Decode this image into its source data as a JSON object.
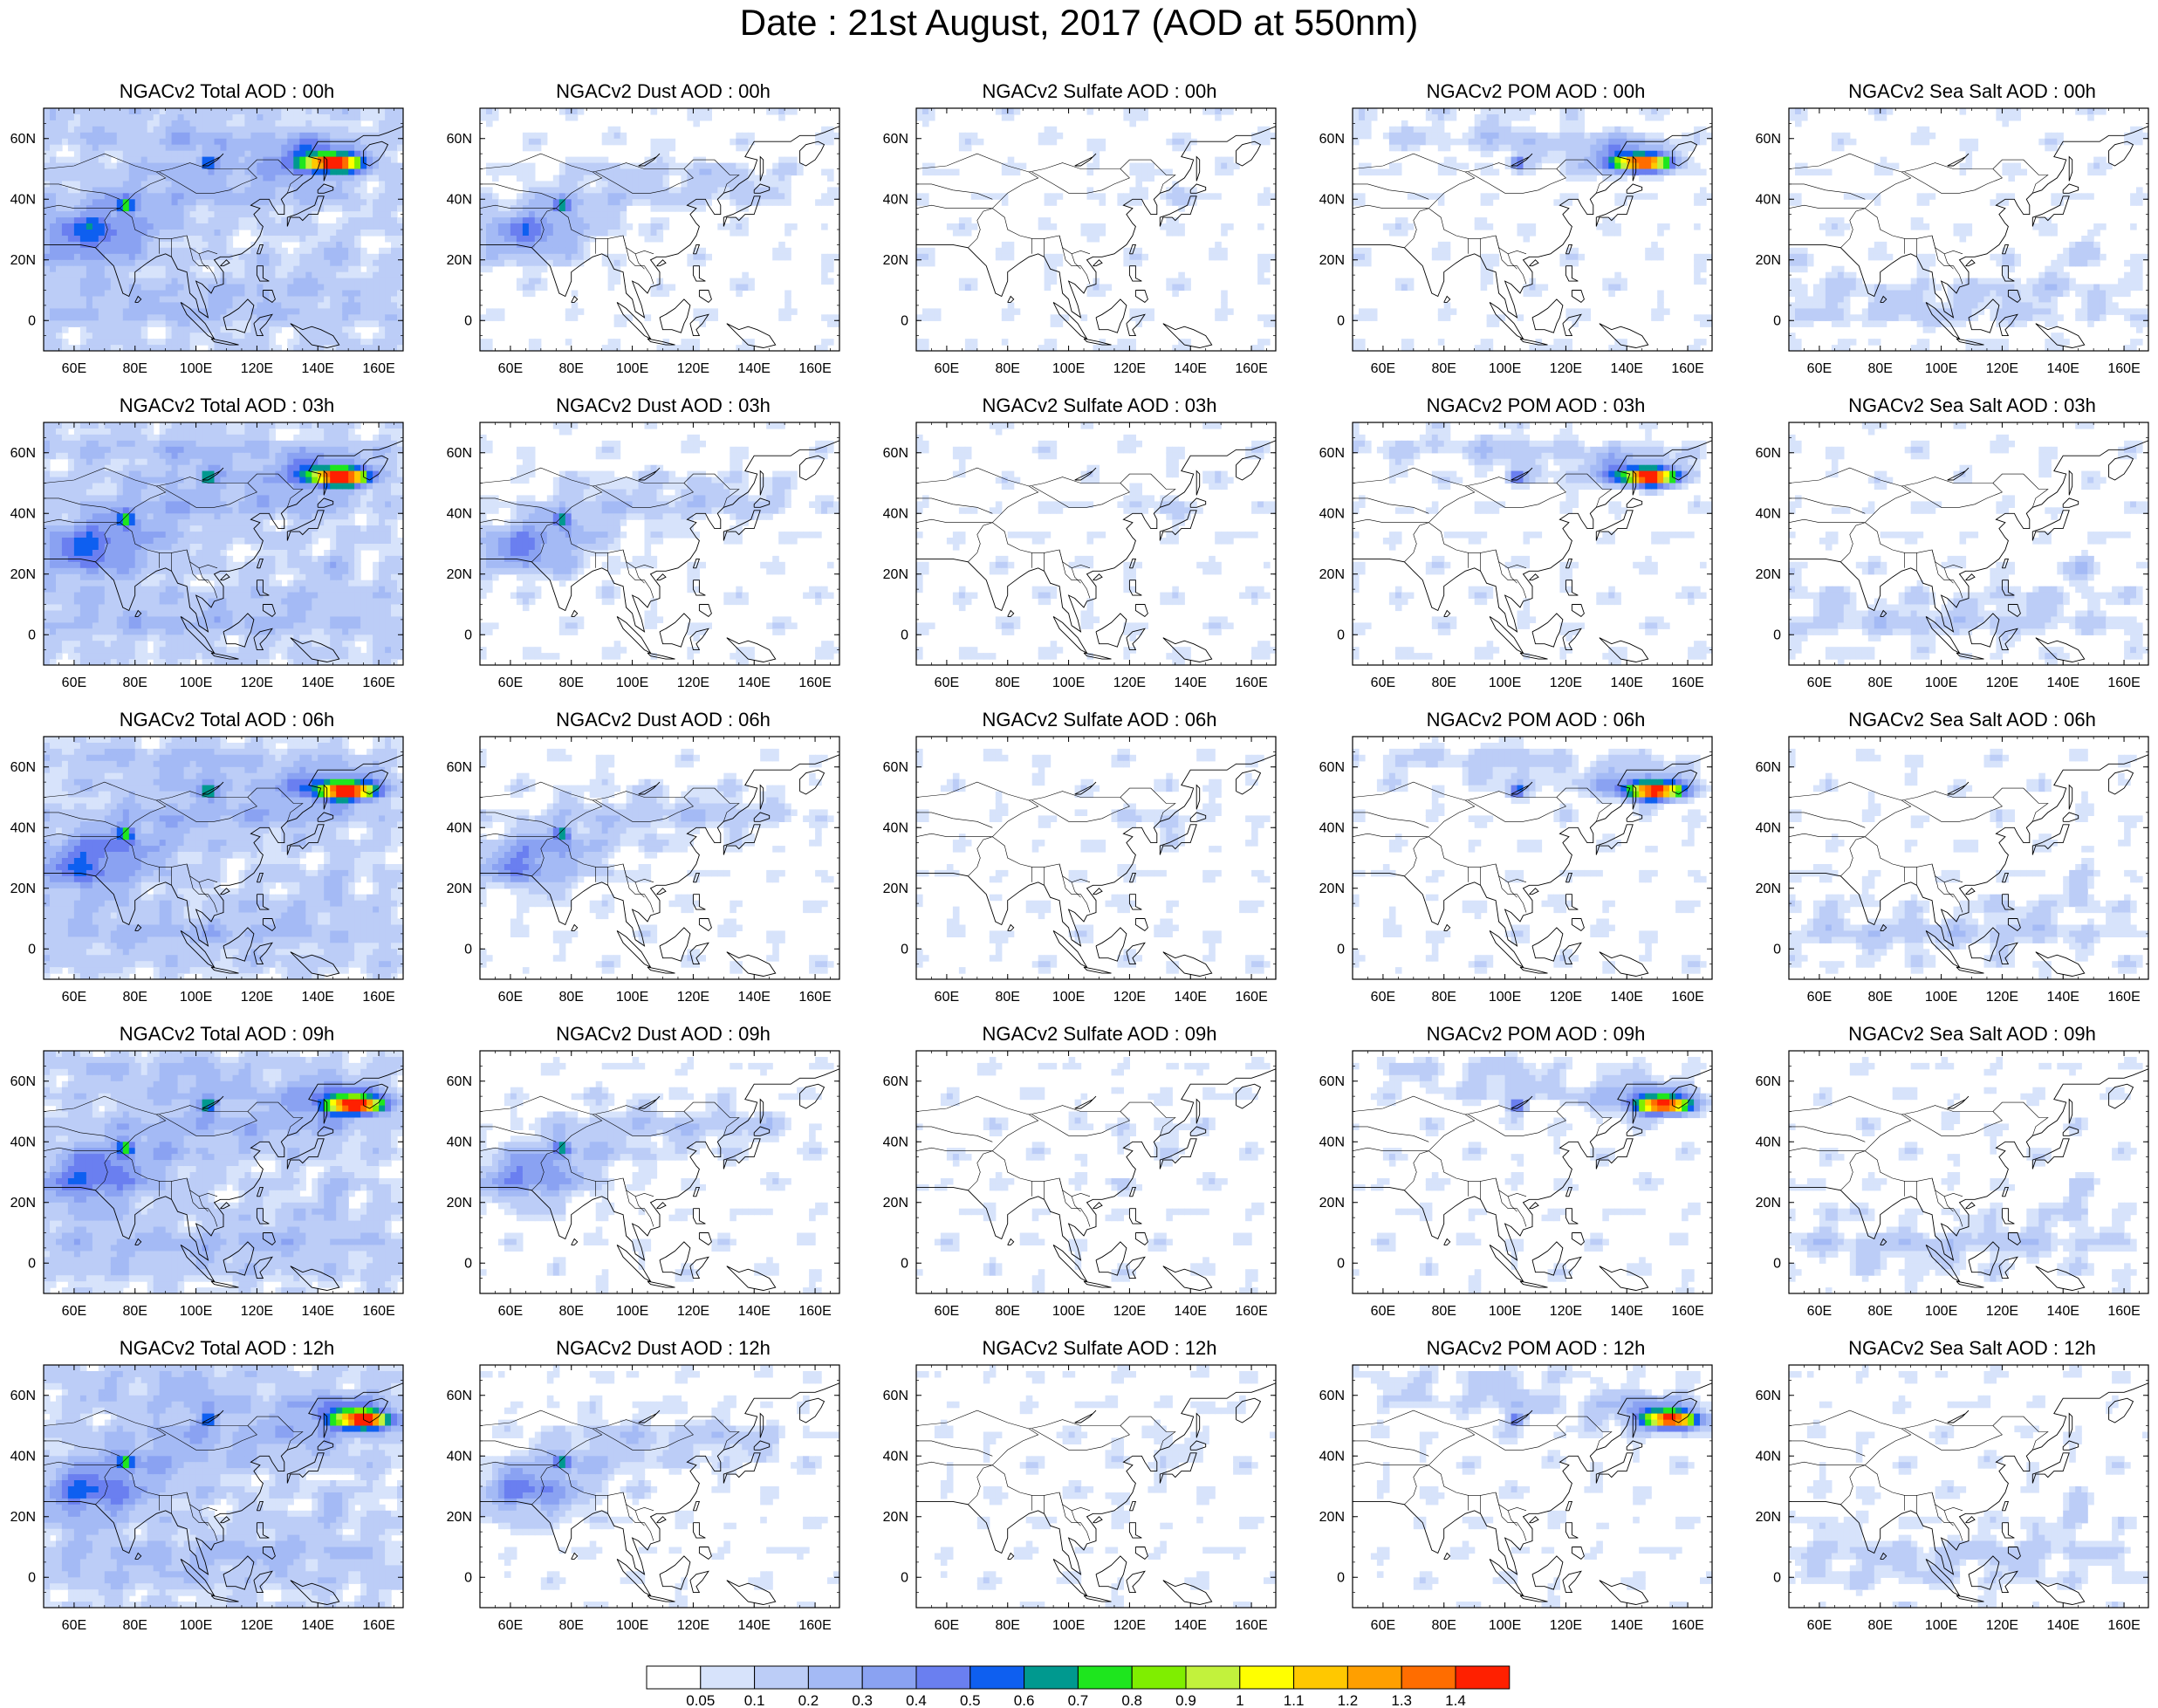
{
  "figure": {
    "title": "Date : 21st August, 2017 (AOD at 550nm)"
  },
  "map": {
    "x_ticks": [
      "60E",
      "80E",
      "100E",
      "120E",
      "140E",
      "160E"
    ],
    "y_ticks": [
      "60N",
      "40N",
      "20N",
      "0"
    ],
    "lon_range": [
      50,
      168
    ],
    "lat_range": [
      -10,
      70
    ],
    "projection": "cylindrical equidistant",
    "region": "Asia-Pacific"
  },
  "panels": [
    {
      "title": "NGACv2 Total AOD : 00h",
      "species": "total",
      "hour": "00h"
    },
    {
      "title": "NGACv2 Dust AOD : 00h",
      "species": "dust",
      "hour": "00h"
    },
    {
      "title": "NGACv2 Sulfate AOD : 00h",
      "species": "sulfate",
      "hour": "00h"
    },
    {
      "title": "NGACv2 POM AOD : 00h",
      "species": "pom",
      "hour": "00h"
    },
    {
      "title": "NGACv2 Sea Salt AOD : 00h",
      "species": "seasalt",
      "hour": "00h"
    },
    {
      "title": "NGACv2 Total AOD : 03h",
      "species": "total",
      "hour": "03h"
    },
    {
      "title": "NGACv2 Dust AOD : 03h",
      "species": "dust",
      "hour": "03h"
    },
    {
      "title": "NGACv2 Sulfate AOD : 03h",
      "species": "sulfate",
      "hour": "03h"
    },
    {
      "title": "NGACv2 POM AOD : 03h",
      "species": "pom",
      "hour": "03h"
    },
    {
      "title": "NGACv2 Sea Salt AOD : 03h",
      "species": "seasalt",
      "hour": "03h"
    },
    {
      "title": "NGACv2 Total AOD : 06h",
      "species": "total",
      "hour": "06h"
    },
    {
      "title": "NGACv2 Dust AOD : 06h",
      "species": "dust",
      "hour": "06h"
    },
    {
      "title": "NGACv2 Sulfate AOD : 06h",
      "species": "sulfate",
      "hour": "06h"
    },
    {
      "title": "NGACv2 POM AOD : 06h",
      "species": "pom",
      "hour": "06h"
    },
    {
      "title": "NGACv2 Sea Salt AOD : 06h",
      "species": "seasalt",
      "hour": "06h"
    },
    {
      "title": "NGACv2 Total AOD : 09h",
      "species": "total",
      "hour": "09h"
    },
    {
      "title": "NGACv2 Dust AOD : 09h",
      "species": "dust",
      "hour": "09h"
    },
    {
      "title": "NGACv2 Sulfate AOD : 09h",
      "species": "sulfate",
      "hour": "09h"
    },
    {
      "title": "NGACv2 POM AOD : 09h",
      "species": "pom",
      "hour": "09h"
    },
    {
      "title": "NGACv2 Sea Salt  AOD : 09h",
      "species": "seasalt",
      "hour": "09h"
    },
    {
      "title": "NGACv2 Total AOD  : 12h",
      "species": "total",
      "hour": "12h"
    },
    {
      "title": "NGACv2 Dust AOD : 12h",
      "species": "dust",
      "hour": "12h"
    },
    {
      "title": "NGACv2 Sulfate AOD : 12h",
      "species": "sulfate",
      "hour": "12h"
    },
    {
      "title": "NGACv2 POM  AOD : 12h",
      "species": "pom",
      "hour": "12h"
    },
    {
      "title": "NGACv2 Sea Salt  AOD : 12h",
      "species": "seasalt",
      "hour": "12h"
    }
  ],
  "colorbar": {
    "labels": [
      "0.05",
      "0.1",
      "0.2",
      "0.3",
      "0.4",
      "0.5",
      "0.6",
      "0.7",
      "0.8",
      "0.9",
      "1",
      "1.1",
      "1.2",
      "1.3",
      "1.4"
    ],
    "colors": [
      "#ffffff",
      "#d7e3fb",
      "#bccdf7",
      "#a4baf5",
      "#8aa2f2",
      "#6a7ff0",
      "#0e5ff0",
      "#00998f",
      "#1ee61e",
      "#7fee00",
      "#c2f23c",
      "#ffff00",
      "#ffc800",
      "#ff9f00",
      "#ff6d00",
      "#ff2000"
    ]
  }
}
